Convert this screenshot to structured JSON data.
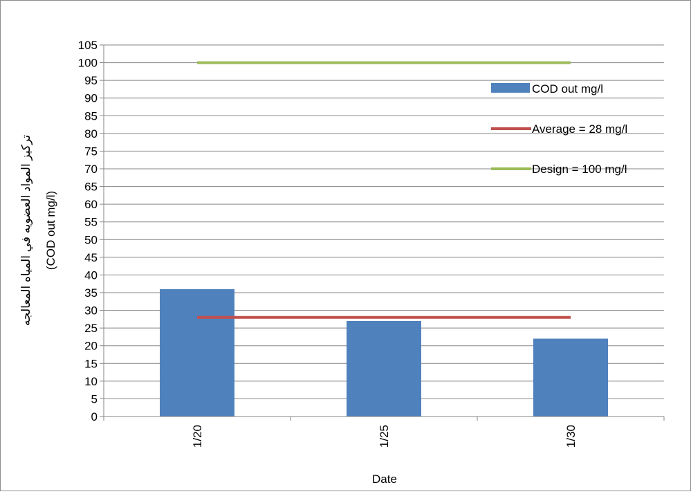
{
  "chart_data": {
    "type": "bar",
    "title": "",
    "categories": [
      "1/20",
      "1/25",
      "1/30"
    ],
    "series": [
      {
        "name": "COD out mg/l",
        "type": "bar",
        "values": [
          36,
          27,
          22
        ],
        "color": "#4f81bd"
      },
      {
        "name": "Average = 28 mg/l",
        "type": "line",
        "values": [
          28,
          28,
          28
        ],
        "color": "#c0504d"
      },
      {
        "name": "Design = 100 mg/l",
        "type": "line",
        "values": [
          100,
          100,
          100
        ],
        "color": "#9bbb59"
      }
    ],
    "xlabel": "Date",
    "ylabel_line1": "تركيز المواد العضويه في المياه المعالجه",
    "ylabel_line2": "(COD out mg/l)",
    "ylim": [
      0,
      105
    ],
    "ytick_step": 5,
    "grid": true,
    "legend_position": "right"
  }
}
